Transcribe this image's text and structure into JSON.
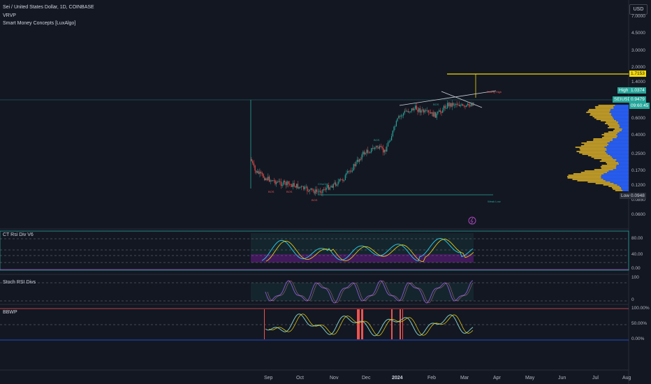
{
  "header": {
    "symbol_line": "Sei / United States Dollar, 1D, COINBASE",
    "indicator_1": "VRVP",
    "indicator_2": "Smart Money Concepts [LuxAlgo]"
  },
  "currency_button": "USD",
  "price_scale": [
    "7.0000",
    "4.5000",
    "3.0000",
    "2.0000",
    "1.4000",
    "0.6000",
    "0.4000",
    "0.2500",
    "0.1700",
    "0.1200",
    "0.0850",
    "0.0600"
  ],
  "badges": {
    "resistance": "1.7153",
    "high_label": "High",
    "high_value": "1.0374",
    "symbol": "SEIUSD",
    "last_price": "0.9479",
    "countdown": "09:60:45",
    "low_label": "Low",
    "low_value": "0.0948"
  },
  "chart_labels": {
    "weak_high": "Weak High",
    "weak_low": "Weak Low",
    "strong_high": "Strong High",
    "choch": "CHoCH",
    "bos": "BOS"
  },
  "panes": {
    "rsi": {
      "title": "CT Rsi Div V6",
      "scale": [
        "80.00",
        "40.00",
        "0.00"
      ]
    },
    "stoch": {
      "title": "Stoch RSI Divs",
      "scale": [
        "100",
        "0"
      ]
    },
    "bbwp": {
      "title": "BBWP",
      "scale": [
        "100.00%",
        "50.00%",
        "0.00%"
      ]
    }
  },
  "time_axis": [
    "Sep",
    "Oct",
    "Nov",
    "Dec",
    "2024",
    "Feb",
    "Mar",
    "Apr",
    "May",
    "Jun",
    "Jul",
    "Aug"
  ],
  "colors": {
    "background": "#131722",
    "up_candle": "#26a69a",
    "down_candle": "#ef5350",
    "resistance": "#f5d90a",
    "volume_profile_up": "#c9a227",
    "volume_profile_down": "#2962ff",
    "pane_border": "#26a69a"
  }
}
